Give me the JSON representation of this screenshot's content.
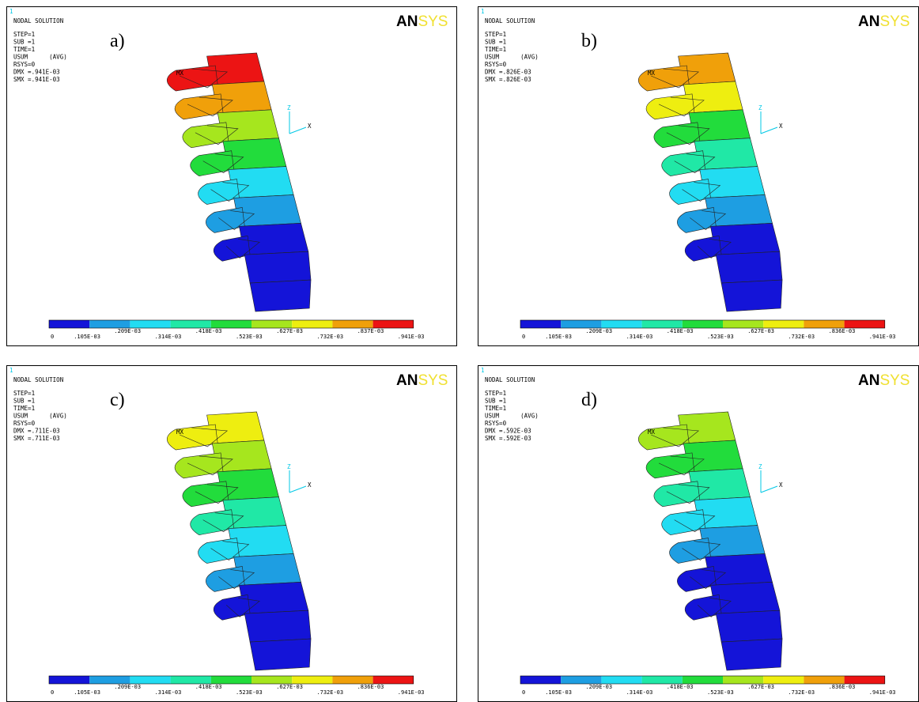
{
  "panels": [
    {
      "label": "a)",
      "id": "1",
      "title": "NODAL SOLUTION",
      "lines": [
        "STEP=1",
        "SUB =1",
        "TIME=1",
        "USUM      (AVG)",
        "RSYS=0",
        "DMX =.941E-03",
        "SMX =.941E-03"
      ],
      "logo": [
        "AN",
        "SYS"
      ],
      "mx": "MX",
      "axis_z": "Z",
      "axis_x": "X",
      "legend": [
        "0",
        ".105E-03",
        ".209E-03",
        ".314E-03",
        ".418E-03",
        ".523E-03",
        ".627E-03",
        ".732E-03",
        ".837E-03",
        ".941E-03"
      ]
    },
    {
      "label": "b)",
      "id": "1",
      "title": "NODAL SOLUTION",
      "lines": [
        "STEP=1",
        "SUB =1",
        "TIME=1",
        "USUM      (AVG)",
        "RSYS=0",
        "DMX =.826E-03",
        "SMX =.826E-03"
      ],
      "logo": [
        "AN",
        "SYS"
      ],
      "mx": "MX",
      "axis_z": "Z",
      "axis_x": "X",
      "legend": [
        "0",
        ".105E-03",
        ".209E-03",
        ".314E-03",
        ".418E-03",
        ".523E-03",
        ".627E-03",
        ".732E-03",
        ".836E-03",
        ".941E-03"
      ]
    },
    {
      "label": "c)",
      "id": "1",
      "title": "NODAL SOLUTION",
      "lines": [
        "STEP=1",
        "SUB =1",
        "TIME=1",
        "USUM      (AVG)",
        "RSYS=0",
        "DMX =.711E-03",
        "SMX =.711E-03"
      ],
      "logo": [
        "AN",
        "SYS"
      ],
      "mx": "MX",
      "axis_z": "Z",
      "axis_x": "X",
      "legend": [
        "0",
        ".105E-03",
        ".209E-03",
        ".314E-03",
        ".418E-03",
        ".523E-03",
        ".627E-03",
        ".732E-03",
        ".836E-03",
        ".941E-03"
      ]
    },
    {
      "label": "d)",
      "id": "1",
      "title": "NODAL SOLUTION",
      "lines": [
        "STEP=1",
        "SUB =1",
        "TIME=1",
        "USUM      (AVG)",
        "RSYS=0",
        "DMX =.592E-03",
        "SMX =.592E-03"
      ],
      "logo": [
        "AN",
        "SYS"
      ],
      "mx": "MX",
      "axis_z": "Z",
      "axis_x": "X",
      "legend": [
        "0",
        ".105E-03",
        ".209E-03",
        ".314E-03",
        ".418E-03",
        ".523E-03",
        ".627E-03",
        ".732E-03",
        ".836E-03",
        ".941E-03"
      ]
    }
  ]
}
